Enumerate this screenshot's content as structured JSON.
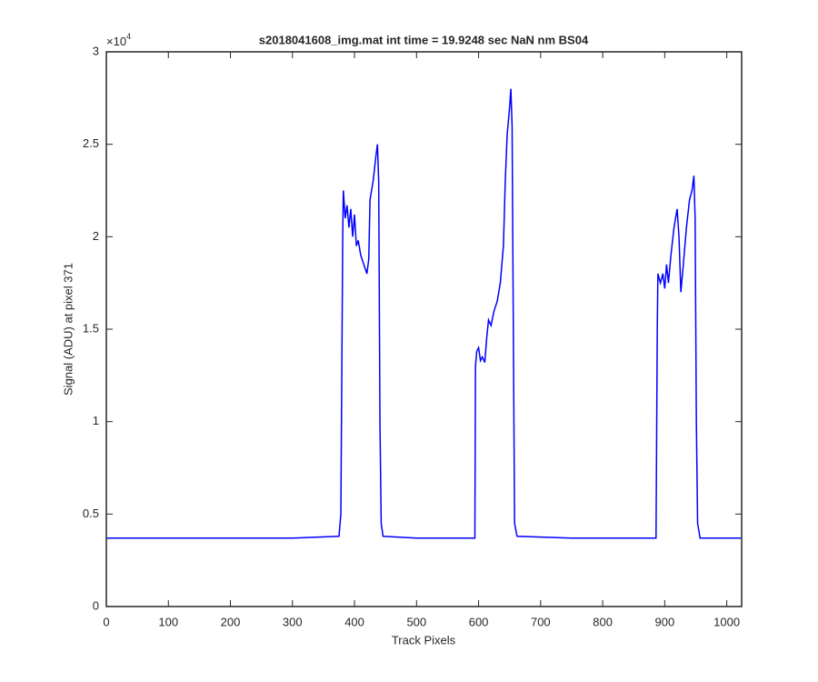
{
  "chart_data": {
    "type": "line",
    "title": "s2018041608_img.mat int time = 19.9248 sec  NaN nm BS04",
    "xlabel": "Track Pixels",
    "ylabel": "Signal (ADU) at pixel 371",
    "y_multiplier": {
      "base": "×10",
      "exponent": "4"
    },
    "xlim": [
      0,
      1024
    ],
    "xticks": [
      0,
      100,
      200,
      300,
      400,
      500,
      600,
      700,
      800,
      900,
      1000
    ],
    "ylim": [
      0,
      3
    ],
    "yticks": [
      0,
      0.5,
      1,
      1.5,
      2,
      2.5,
      3
    ],
    "series": [
      {
        "color": "#0000ff",
        "x": [
          0,
          100,
          200,
          300,
          375,
          378,
          380,
          381,
          382,
          385,
          388,
          391,
          394,
          397,
          400,
          403,
          406,
          410,
          415,
          420,
          423,
          425,
          430,
          435,
          437,
          439,
          441,
          443,
          446,
          500,
          594,
          595,
          597,
          600,
          603,
          606,
          610,
          613,
          616,
          620,
          625,
          630,
          635,
          640,
          643,
          646,
          650,
          652,
          654,
          656,
          658,
          662,
          750,
          886,
          888,
          889,
          893,
          897,
          900,
          903,
          906,
          910,
          915,
          920,
          923,
          926,
          930,
          935,
          940,
          944,
          947,
          949,
          951,
          953,
          957,
          1023
        ],
        "values": [
          0.37,
          0.37,
          0.37,
          0.37,
          0.38,
          0.5,
          1.5,
          2.0,
          2.25,
          2.1,
          2.17,
          2.05,
          2.15,
          2.0,
          2.12,
          1.95,
          1.98,
          1.9,
          1.85,
          1.8,
          1.88,
          2.2,
          2.3,
          2.45,
          2.5,
          2.3,
          1.0,
          0.45,
          0.38,
          0.37,
          0.37,
          1.3,
          1.38,
          1.4,
          1.33,
          1.35,
          1.32,
          1.45,
          1.55,
          1.52,
          1.6,
          1.65,
          1.75,
          1.95,
          2.3,
          2.55,
          2.7,
          2.8,
          2.6,
          1.5,
          0.45,
          0.38,
          0.37,
          0.37,
          1.5,
          1.8,
          1.75,
          1.8,
          1.72,
          1.85,
          1.75,
          1.9,
          2.05,
          2.15,
          2.0,
          1.7,
          1.85,
          2.05,
          2.2,
          2.25,
          2.33,
          2.1,
          1.0,
          0.45,
          0.37,
          0.37
        ]
      }
    ]
  }
}
